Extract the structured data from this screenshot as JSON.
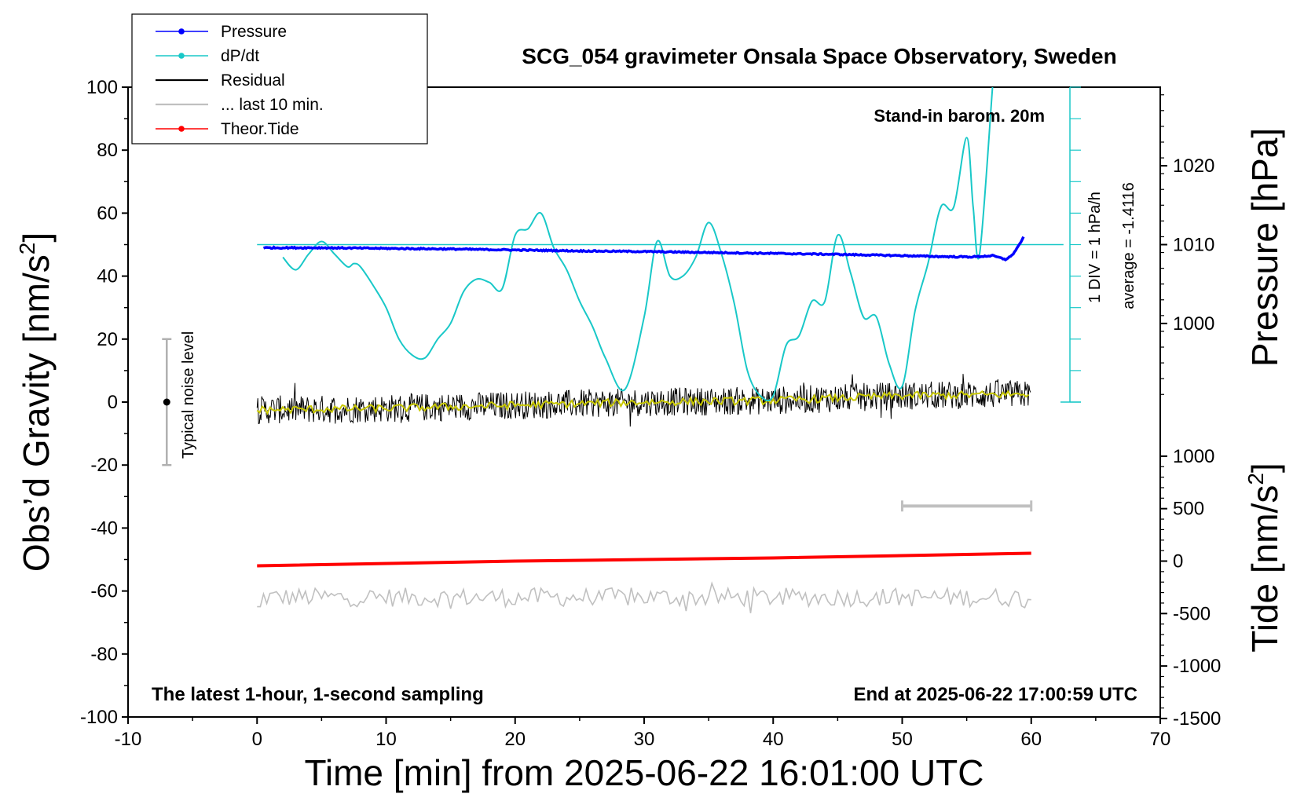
{
  "title": "SCG_054 gravimeter Onsala Space Observatory, Sweden",
  "note_barometer": "Stand-in barom. 20m",
  "note_bottom_left": "The latest 1-hour, 1-second sampling",
  "note_bottom_right": "End at 2025-06-22 17:00:59 UTC",
  "noise_label": "Typical noise level",
  "div_label": "1 DIV = 1 hPa/h",
  "average_label": "average = -1.4116",
  "xlabel": "Time [min] from 2025-06-22 16:01:00 UTC",
  "ylabel_left_main": "Obs’d Gravity [nm/s",
  "ylabel_left_sup": "2",
  "ylabel_left_end": "]",
  "ylabel_right_pressure": "Pressure [hPa]",
  "ylabel_right_tide_main": "Tide [nm/s",
  "ylabel_right_tide_sup": "2",
  "ylabel_right_tide_end": "]",
  "legend": [
    {
      "label": "Pressure",
      "color": "#0000ff",
      "marker": true
    },
    {
      "label": "dP/dt",
      "color": "#19c8c8",
      "marker": true
    },
    {
      "label": "Residual",
      "color": "#000000",
      "marker": false
    },
    {
      "label": "... last 10 min.",
      "color": "#c0c0c0",
      "marker": false
    },
    {
      "label": "Theor.Tide",
      "color": "#ff0000",
      "marker": true
    }
  ],
  "colors": {
    "pressure": "#0000ff",
    "dpdt": "#19c8c8",
    "residual": "#000000",
    "residual_smooth": "#c8c800",
    "last10": "#c0c0c0",
    "tide": "#ff0000",
    "noise": "#b0b0b0"
  },
  "chart_data": {
    "type": "line",
    "title": "SCG_054 gravimeter Onsala Space Observatory, Sweden",
    "xlabel": "Time [min] from 2025-06-22 16:01:00 UTC",
    "ylabel": "Obs’d Gravity [nm/s2]",
    "xlim": [
      -10,
      70
    ],
    "ylim": [
      -100,
      100
    ],
    "x_ticks": [
      "-10",
      "0",
      "10",
      "20",
      "30",
      "40",
      "50",
      "60",
      "70"
    ],
    "y_ticks": [
      "100",
      "80",
      "60",
      "40",
      "20",
      "0",
      "-20",
      "-40",
      "-60",
      "-80",
      "-100"
    ],
    "pressure_axis": {
      "label": "Pressure [hPa]",
      "ticks": [
        "1020",
        "1010",
        "1000"
      ],
      "values": [
        1020,
        1010,
        1000
      ]
    },
    "tide_axis": {
      "label": "Tide [nm/s2]",
      "ticks": [
        "1000",
        "500",
        "0",
        "-500",
        "-1000",
        "-1500"
      ],
      "values": [
        1000,
        500,
        0,
        -500,
        -1000,
        -1500
      ]
    },
    "noise_level": {
      "x": -7,
      "center": 0,
      "low": -20,
      "high": 20
    },
    "last10_bar": {
      "x_start": 50,
      "x_end": 60,
      "y": -33
    },
    "series": [
      {
        "name": "Pressure",
        "x": [
          0,
          5,
          10,
          15,
          20,
          25,
          30,
          35,
          40,
          45,
          50,
          53,
          55,
          56,
          57,
          58,
          58.5,
          59,
          59.5
        ],
        "y": [
          49,
          49,
          48.8,
          48.6,
          48.3,
          48,
          47.8,
          47.5,
          47.2,
          46.9,
          46.5,
          46.2,
          46.1,
          46.2,
          46.5,
          45.3,
          46.5,
          49.5,
          53
        ]
      },
      {
        "name": "dP/dt",
        "x": [
          2,
          3,
          4,
          5,
          6,
          7,
          7.5,
          8,
          9,
          10,
          11,
          12,
          13,
          14,
          15,
          16,
          17,
          18,
          19,
          20,
          21,
          22,
          23,
          24,
          25,
          26,
          27,
          28.5,
          30,
          31,
          32,
          33,
          34,
          35,
          36,
          37,
          38,
          39,
          40,
          41,
          42,
          43,
          44,
          45,
          46,
          47,
          48,
          49,
          50,
          51,
          52,
          53,
          54,
          55,
          55.5,
          56,
          57
        ],
        "y": [
          46,
          42,
          47,
          51,
          47,
          43,
          44,
          43,
          37,
          30,
          20,
          15,
          14,
          20,
          25,
          35,
          39,
          38,
          36,
          53,
          55,
          60,
          49,
          42,
          32,
          24,
          14,
          4,
          27,
          51,
          40,
          40,
          46,
          57,
          47,
          31,
          10,
          2,
          2,
          18,
          21,
          32,
          32,
          53,
          41,
          27,
          27,
          12,
          5,
          29,
          44,
          62,
          62,
          84,
          62,
          47,
          100
        ]
      },
      {
        "name": "Residual",
        "x": [
          0,
          10,
          20,
          30,
          40,
          50,
          60
        ],
        "y": [
          -2.5,
          -2,
          -1,
          0,
          0.5,
          2,
          2.5
        ]
      },
      {
        "name": "... last 10 min.",
        "x": [
          0,
          10,
          20,
          30,
          40,
          50,
          60
        ],
        "y": [
          -62,
          -62,
          -62,
          -62,
          -62,
          -62,
          -62
        ]
      },
      {
        "name": "Theor.Tide",
        "x": [
          0,
          20,
          40,
          60
        ],
        "y": [
          -52,
          -50.5,
          -49.5,
          -48
        ]
      }
    ]
  }
}
